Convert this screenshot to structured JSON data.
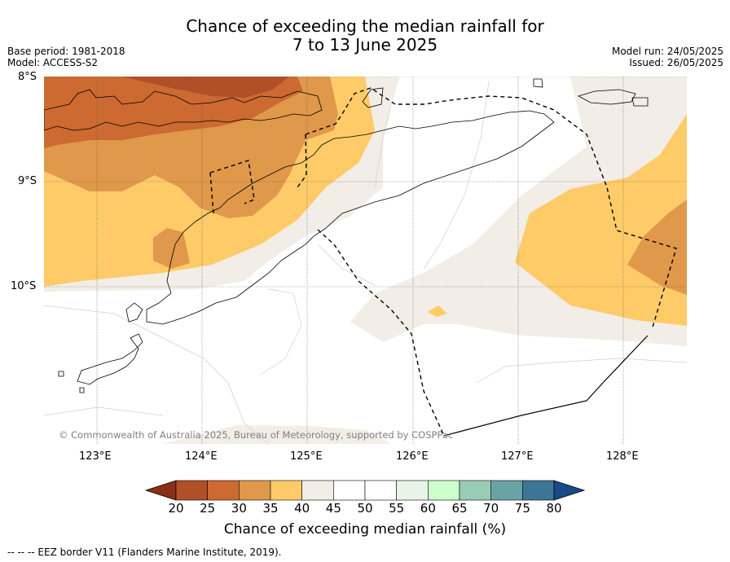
{
  "header": {
    "title_line1": "Chance of exceeding the median rainfall for",
    "title_line2": "7 to 13 June 2025",
    "base_period": "Base period: 1981-2018",
    "model": "Model: ACCESS-S2",
    "model_run": "Model run: 24/05/2025",
    "issued": "Issued: 26/05/2025"
  },
  "map": {
    "lat_labels": [
      "8°S",
      "9°S",
      "10°S"
    ],
    "lon_labels": [
      "123°E",
      "124°E",
      "125°E",
      "126°E",
      "127°E",
      "128°E"
    ],
    "copyright": "© Commonwealth of Australia 2025, Bureau of Meteorology, supported by COSPPac",
    "colors": {
      "c20_25": "#b14f26",
      "c25_30": "#cc6a32",
      "c30_35": "#e0984a",
      "c35_40": "#fecb68",
      "c40_45": "#f2ede7",
      "land_line": "#000000"
    }
  },
  "colorbar": {
    "ticks": [
      "20",
      "25",
      "30",
      "35",
      "40",
      "45",
      "50",
      "55",
      "60",
      "65",
      "70",
      "75",
      "80"
    ],
    "colors": [
      "#8b2e17",
      "#b14f26",
      "#cc6a32",
      "#e0984a",
      "#fecb68",
      "#f2ede7",
      "#ffffff",
      "#ffffff",
      "#e8f4e6",
      "#ccffcc",
      "#99ccb6",
      "#6aa3a6",
      "#3e7596",
      "#174a86"
    ],
    "title": "Chance of exceeding median rainfall (%)"
  },
  "footer": {
    "legend": "--  --  -- EEZ border V11 (Flanders Marine Institute, 2019)."
  }
}
